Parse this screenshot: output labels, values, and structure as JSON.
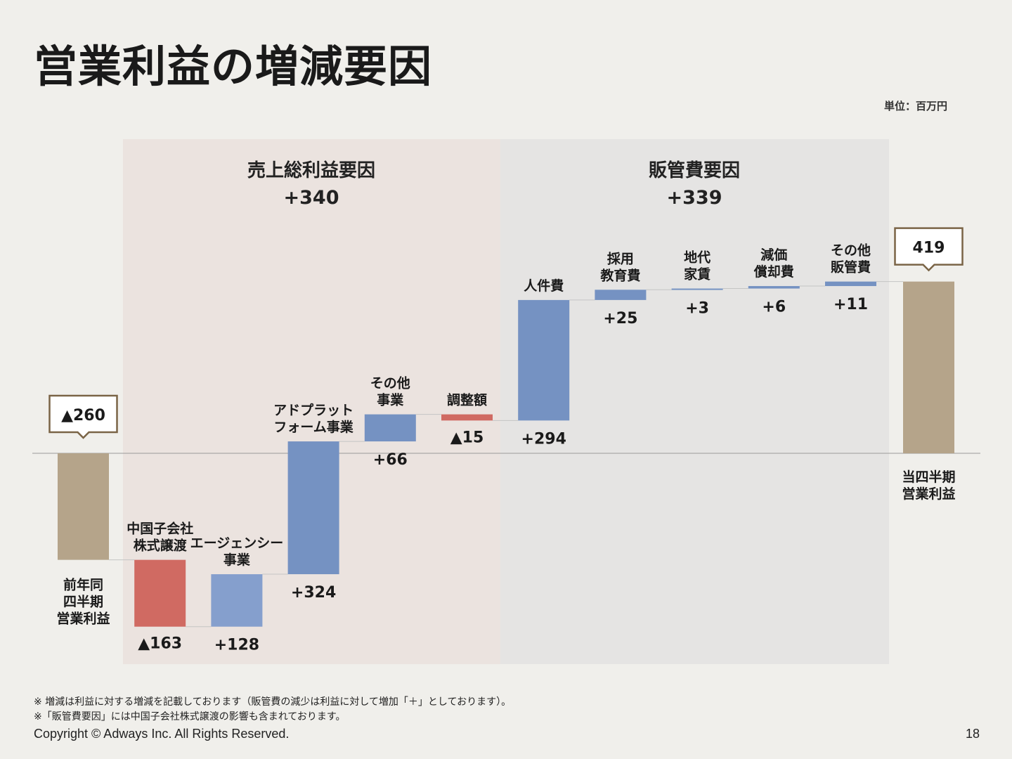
{
  "page": {
    "title": "営業利益の増減要因",
    "unit": "単位：百万円",
    "footnotes": [
      "※ 増減は利益に対する増減を記載しております（販管費の減少は利益に対して増加「＋」としております）。",
      "※「販管費要因」には中国子会社株式譲渡の影響も含まれております。"
    ],
    "copyright": "Copyright © Adways Inc. All Rights Reserved.",
    "page_number": "18"
  },
  "sections": {
    "gross": {
      "title": "売上総利益要因",
      "total": "+340"
    },
    "sga": {
      "title": "販管費要因",
      "total": "+339"
    }
  },
  "colors": {
    "total_bar": "#b5a48a",
    "increase_bar": "#7592c2",
    "increase_bar_light": "#859fcd",
    "decrease_bar": "#d06a62",
    "callout_border": "#7a6446",
    "connector": "#c4c4c4",
    "zero_line": "#9a9a9a"
  },
  "chart_data": {
    "type": "waterfall",
    "steps": [
      {
        "label": [
          "前年同",
          "四半期",
          "営業利益"
        ],
        "value": -260,
        "display": "▲260",
        "kind": "total"
      },
      {
        "label": [
          "中国子会社",
          "株式譲渡"
        ],
        "value": -163,
        "display": "▲163",
        "kind": "decrease"
      },
      {
        "label": [
          "エージェンシー",
          "事業"
        ],
        "value": 128,
        "display": "+128",
        "kind": "increase_light"
      },
      {
        "label": [
          "アドプラット",
          "フォーム事業"
        ],
        "value": 324,
        "display": "+324",
        "kind": "increase"
      },
      {
        "label": [
          "その他",
          "事業"
        ],
        "value": 66,
        "display": "+66",
        "kind": "increase"
      },
      {
        "label": [
          "調整額"
        ],
        "value": -15,
        "display": "▲15",
        "kind": "decrease"
      },
      {
        "label": [
          "人件費"
        ],
        "value": 294,
        "display": "+294",
        "kind": "increase"
      },
      {
        "label": [
          "採用",
          "教育費"
        ],
        "value": 25,
        "display": "+25",
        "kind": "increase"
      },
      {
        "label": [
          "地代",
          "家賃"
        ],
        "value": 3,
        "display": "+3",
        "kind": "increase"
      },
      {
        "label": [
          "減価",
          "償却費"
        ],
        "value": 6,
        "display": "+6",
        "kind": "increase"
      },
      {
        "label": [
          "その他",
          "販管費"
        ],
        "value": 11,
        "display": "+11",
        "kind": "increase"
      },
      {
        "label": [
          "当四半期",
          "営業利益"
        ],
        "value": 419,
        "display": "419",
        "kind": "total"
      }
    ]
  }
}
